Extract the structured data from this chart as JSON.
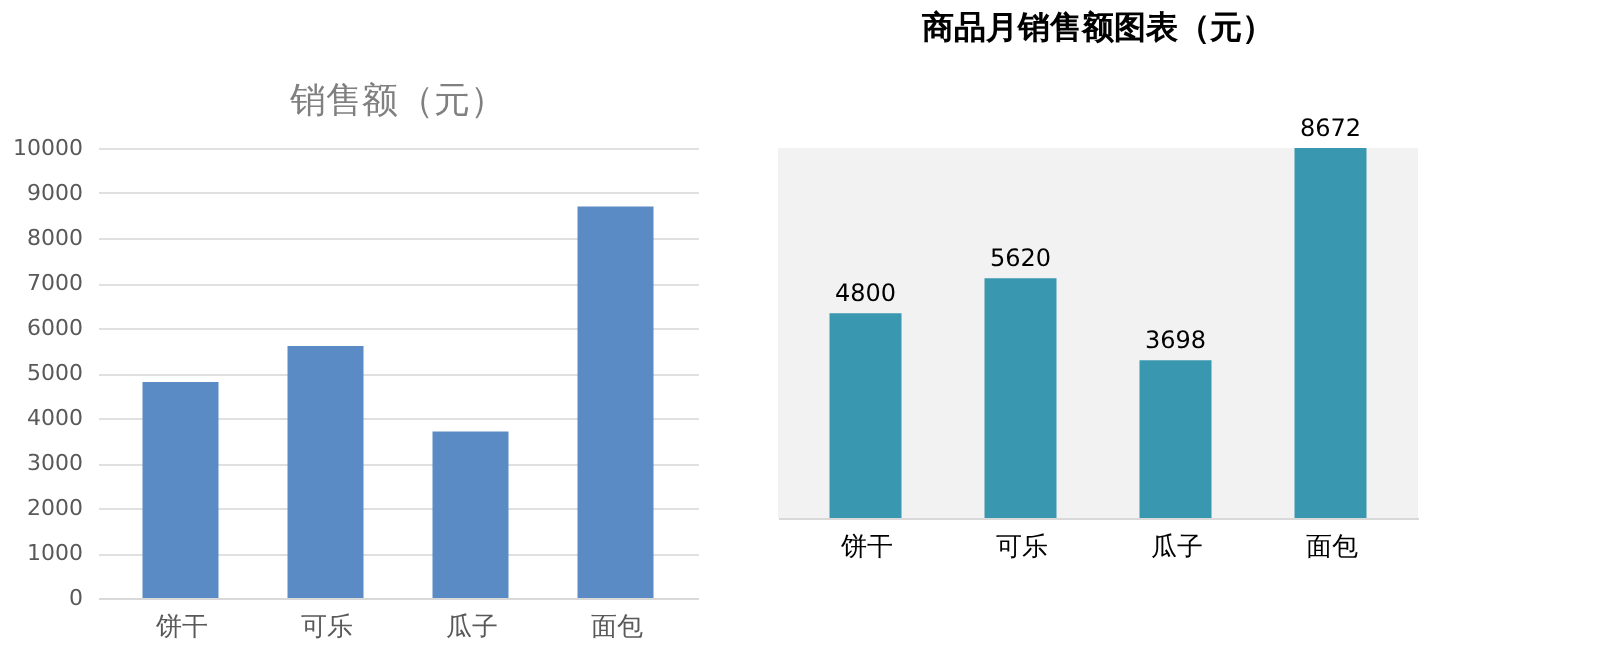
{
  "chart_data": [
    {
      "type": "bar",
      "title": "销售额（元）",
      "categories": [
        "饼干",
        "可乐",
        "瓜子",
        "面包"
      ],
      "values": [
        4800,
        5600,
        3700,
        8700
      ],
      "color": "#5b8bc5",
      "ylim": [
        0,
        10000
      ],
      "yticks": [
        0,
        1000,
        2000,
        3000,
        4000,
        5000,
        6000,
        7000,
        8000,
        9000,
        10000
      ],
      "grid": "y"
    },
    {
      "type": "bar",
      "title": "商品月销售额图表（元）",
      "categories": [
        "饼干",
        "可乐",
        "瓜子",
        "面包"
      ],
      "values": [
        4800,
        5620,
        3698,
        8672
      ],
      "color": "#3a97b0",
      "data_labels": true,
      "tick_labels": "x",
      "grid": false
    }
  ]
}
